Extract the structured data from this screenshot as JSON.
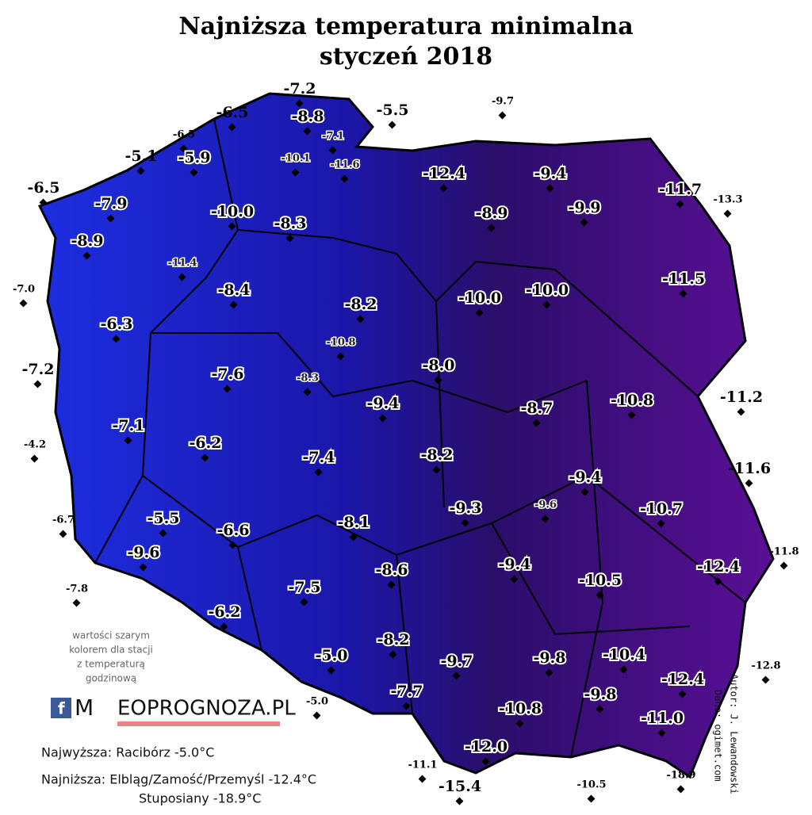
{
  "header": {
    "title": "Najniższa temperatura minimalna",
    "subtitle": "styczeń 2018"
  },
  "stations": [
    "-7.2",
    "-6.5",
    "-8.8",
    "-5.5",
    "-9.7",
    "-6.5",
    "-7.1",
    "-5.1",
    "-5.9",
    "-10.1",
    "-11.6",
    "-12.4",
    "-9.4",
    "-6.5",
    "-11.7",
    "-13.3",
    "-7.9",
    "-10.0",
    "-8.9",
    "-9.9",
    "-8.3",
    "-8.9",
    "-11.4",
    "-11.5",
    "-7.0",
    "-8.4",
    "-10.0",
    "-10.0",
    "-8.2",
    "-6.3",
    "-10.8",
    "-7.2",
    "-8.0",
    "-7.6",
    "-8.3",
    "-9.4",
    "-11.2",
    "-10.8",
    "-8.7",
    "-7.1",
    "-6.2",
    "-4.2",
    "-7.4",
    "-8.2",
    "-11.6",
    "-9.4",
    "-9.6",
    "-9.3",
    "-10.7",
    "-6.7",
    "-5.5",
    "-8.1",
    "-6.6",
    "-11.8",
    "-9.6",
    "-12.4",
    "-9.4",
    "-8.6",
    "-10.5",
    "-7.8",
    "-7.5",
    "-6.2",
    "-10.4",
    "-5.0",
    "-8.2",
    "-9.7",
    "-9.8",
    "-12.8",
    "-12.4",
    "-7.7",
    "-9.8",
    "-5.0",
    "-10.8",
    "-11.0",
    "-12.0",
    "-11.1",
    "-15.4",
    "-10.5",
    "-18.9"
  ],
  "note": [
    "wartości szarym",
    "kolorem dla stacji",
    "z temperaturą",
    "godzinową"
  ],
  "logo": {
    "letter": "M",
    "text": "EOPROGNOZA.PL"
  },
  "summary": {
    "highest": "Najwyższa: Racibórz -5.0°C",
    "lowest": "Najniższa: Elbląg/Zamość/Przemyśl -12.4°C",
    "lowest_extra": "Stuposiany -18.9°C"
  },
  "credits": {
    "author": "Autor: J. Lewandowski",
    "source": "Dane: ogimet.com"
  }
}
